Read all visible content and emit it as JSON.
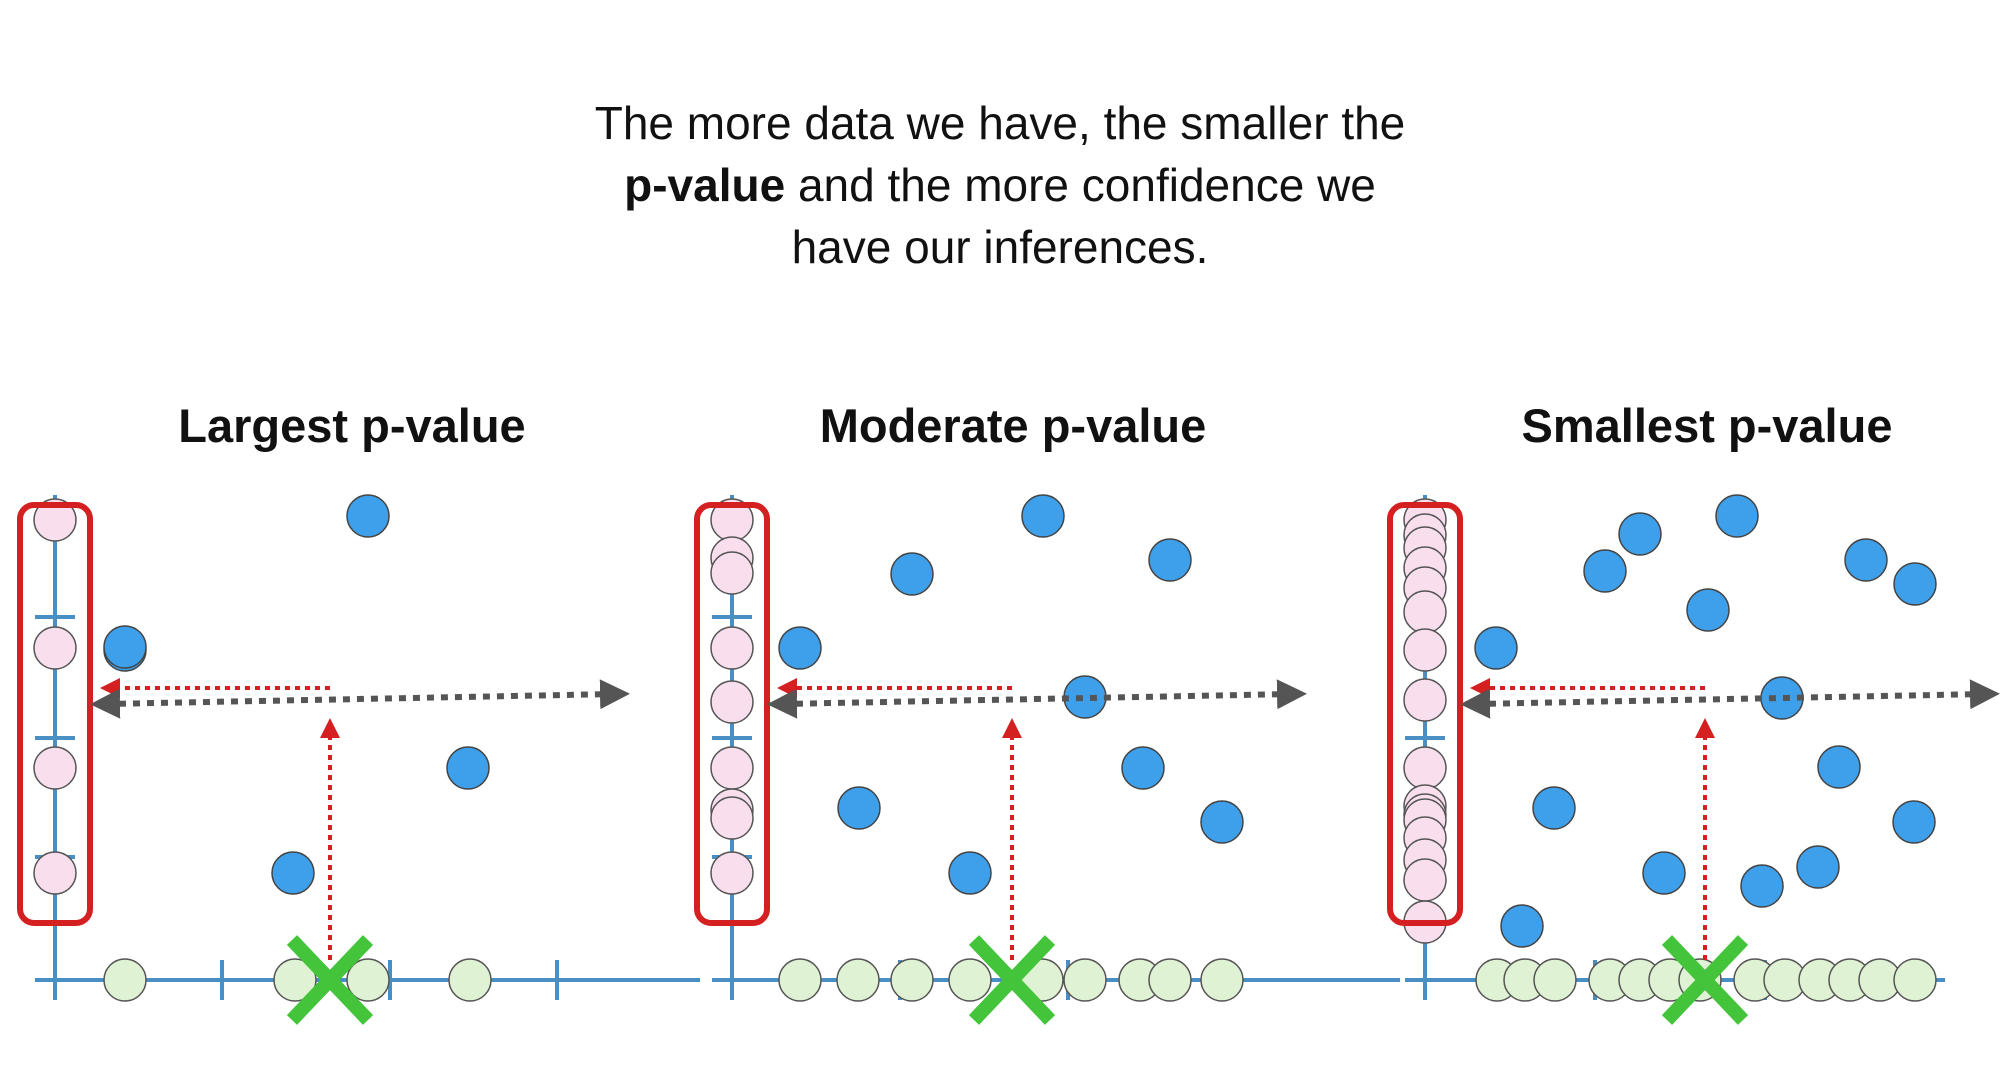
{
  "heading": {
    "line1": "The more data we have, the smaller the",
    "line2_bold": "p-value",
    "line2_rest": " and the more confidence we",
    "line3": "have our inferences."
  },
  "panels": [
    {
      "title": "Largest p-value",
      "green_points": 4,
      "pink_points": 5,
      "blue_points": 5
    },
    {
      "title": "Moderate p-value",
      "green_points": 9,
      "pink_points": 11,
      "blue_points": 11
    },
    {
      "title": "Smallest p-value",
      "green_points": 16,
      "pink_points": 16,
      "blue_points": 16
    }
  ],
  "colors": {
    "axis": "#4a8fc4",
    "blue_point": "#3ea0ea",
    "pink_point": "#f9dfee",
    "green_point": "#dff2d3",
    "green_x": "#43c43a",
    "red_box": "#d42020",
    "red_arrow": "#d42020",
    "gray_arrow": "#555555"
  }
}
